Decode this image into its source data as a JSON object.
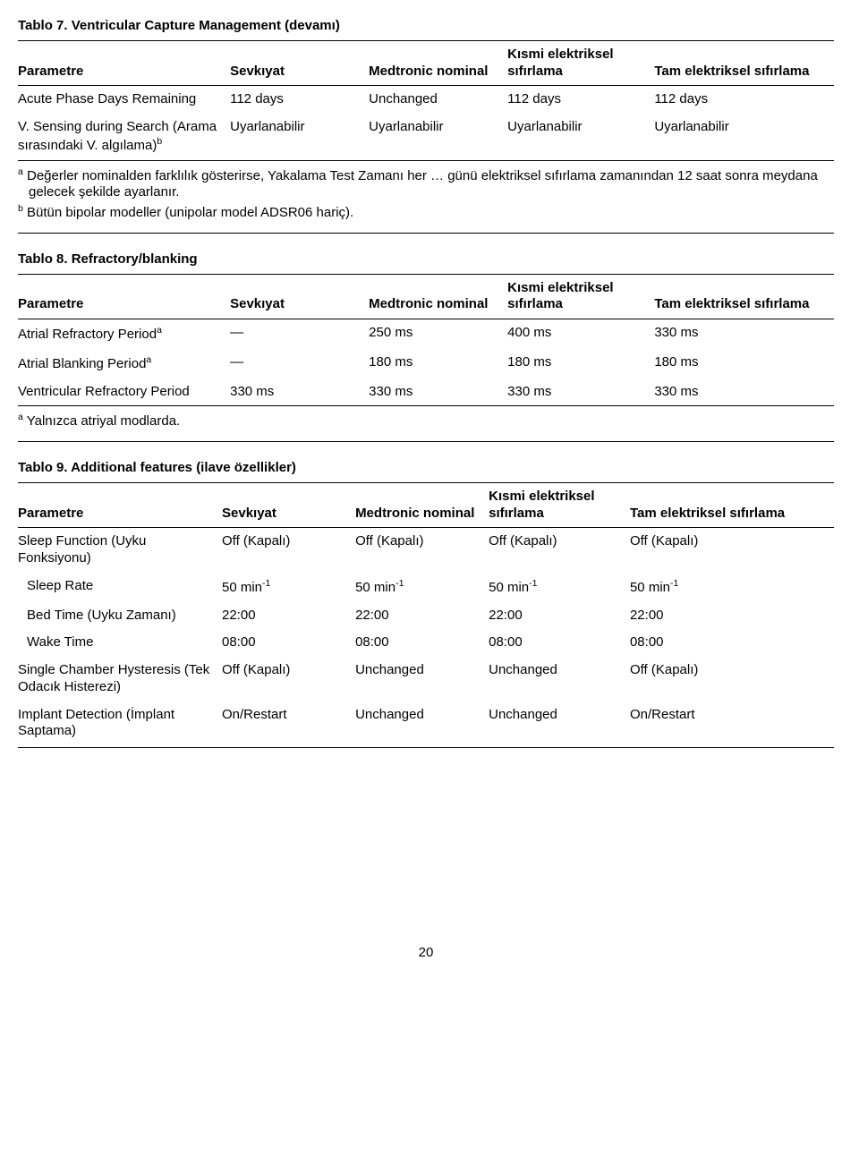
{
  "page_number": "20",
  "table7": {
    "title": "Tablo 7. Ventricular Capture Management (devamı)",
    "columns": [
      "Parametre",
      "Sevkıyat",
      "Medtronic nominal",
      "Kısmi elektriksel sıfırlama",
      "Tam elektriksel sıfırlama"
    ],
    "rows": [
      {
        "p": "Acute Phase Days Remaining",
        "sup": "",
        "c": [
          "112 days",
          "Unchanged",
          "112 days",
          "112 days"
        ]
      },
      {
        "p": "V. Sensing during Search (Arama sırasındaki V. algılama)",
        "sup": "b",
        "c": [
          "Uyarlanabilir",
          "Uyarlanabilir",
          "Uyarlanabilir",
          "Uyarlanabilir"
        ]
      }
    ],
    "footnotes": [
      {
        "mark": "a",
        "text": "Değerler nominalden farklılık gösterirse, Yakalama Test Zamanı her … günü elektriksel sıfırlama zamanından 12 saat sonra meydana gelecek şekilde ayarlanır."
      },
      {
        "mark": "b",
        "text": "Bütün bipolar modeller (unipolar model ADSR06 hariç)."
      }
    ]
  },
  "table8": {
    "title": "Tablo 8. Refractory/blanking",
    "columns": [
      "Parametre",
      "Sevkıyat",
      "Medtronic nominal",
      "Kısmi elektriksel sıfırlama",
      "Tam elektriksel sıfırlama"
    ],
    "rows": [
      {
        "p": "Atrial Refractory Period",
        "sup": "a",
        "c": [
          "—",
          "250 ms",
          "400 ms",
          "330 ms"
        ]
      },
      {
        "p": "Atrial Blanking Period",
        "sup": "a",
        "c": [
          "—",
          "180 ms",
          "180 ms",
          "180 ms"
        ]
      },
      {
        "p": "Ventricular Refractory Period",
        "sup": "",
        "c": [
          "330 ms",
          "330 ms",
          "330 ms",
          "330 ms"
        ]
      }
    ],
    "footnotes": [
      {
        "mark": "a",
        "text": "Yalnızca atriyal modlarda."
      }
    ]
  },
  "table9": {
    "title": "Tablo 9. Additional features (ilave özellikler)",
    "columns": [
      "Parametre",
      "Sevkıyat",
      "Medtronic nominal",
      "Kısmi elektriksel sıfırlama",
      "Tam elektriksel sıfırlama"
    ],
    "rows": [
      {
        "p": "Sleep Function (Uyku Fonksiyonu)",
        "indent": false,
        "c": [
          "Off (Kapalı)",
          "Off (Kapalı)",
          "Off (Kapalı)",
          "Off (Kapalı)"
        ]
      },
      {
        "p": "Sleep Rate",
        "indent": true,
        "raw": true,
        "c": [
          "50 min<sup>-1</sup>",
          "50 min<sup>-1</sup>",
          "50 min<sup>-1</sup>",
          "50 min<sup>-1</sup>"
        ]
      },
      {
        "p": "Bed Time (Uyku Zamanı)",
        "indent": true,
        "c": [
          "22:00",
          "22:00",
          "22:00",
          "22:00"
        ]
      },
      {
        "p": "Wake Time",
        "indent": true,
        "c": [
          "08:00",
          "08:00",
          "08:00",
          "08:00"
        ]
      },
      {
        "p": "Single Chamber Hysteresis (Tek Odacık Histerezi)",
        "indent": false,
        "c": [
          "Off (Kapalı)",
          "Unchanged",
          "Unchanged",
          "Off (Kapalı)"
        ]
      },
      {
        "p": "Implant Detection (İmplant Saptama)",
        "indent": false,
        "c": [
          "On/Restart",
          "Unchanged",
          "Unchanged",
          "On/Restart"
        ]
      }
    ]
  }
}
